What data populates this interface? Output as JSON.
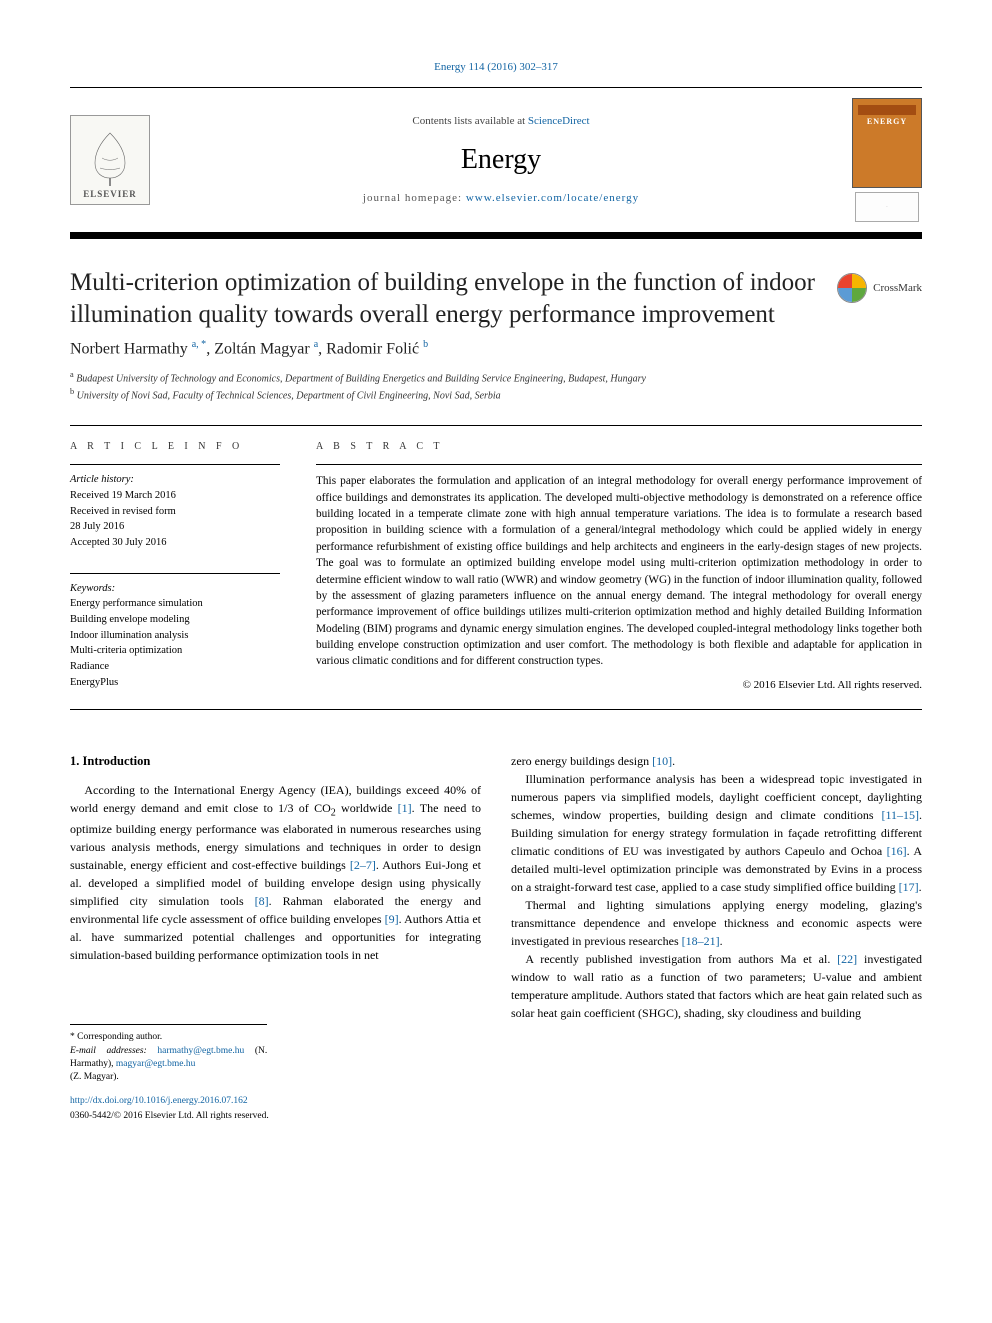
{
  "citation": "Energy 114 (2016) 302–317",
  "header": {
    "contents_prefix": "Contents lists available at ",
    "contents_link": "ScienceDirect",
    "journal": "Energy",
    "homepage_prefix": "journal homepage: ",
    "homepage_url": "www.elsevier.com/locate/energy",
    "elsevier": "ELSEVIER",
    "cover_title": "ENERGY"
  },
  "crossmark": "CrossMark",
  "title": "Multi-criterion optimization of building envelope in the function of indoor illumination quality towards overall energy performance improvement",
  "authors_html": "Norbert Harmathy <sup>a, *</sup>, Zoltán Magyar <sup>a</sup>, Radomir Folić <sup>b</sup>",
  "affiliations": {
    "a": "Budapest University of Technology and Economics, Department of Building Energetics and Building Service Engineering, Budapest, Hungary",
    "b": "University of Novi Sad, Faculty of Technical Sciences, Department of Civil Engineering, Novi Sad, Serbia"
  },
  "article_info": {
    "heading": "A R T I C L E   I N F O",
    "history_label": "Article history:",
    "received": "Received 19 March 2016",
    "revised": "Received in revised form",
    "revised_date": "28 July 2016",
    "accepted": "Accepted 30 July 2016",
    "keywords_label": "Keywords:",
    "keywords": [
      "Energy performance simulation",
      "Building envelope modeling",
      "Indoor illumination analysis",
      "Multi-criteria optimization",
      "Radiance",
      "EnergyPlus"
    ]
  },
  "abstract": {
    "heading": "A B S T R A C T",
    "text": "This paper elaborates the formulation and application of an integral methodology for overall energy performance improvement of office buildings and demonstrates its application. The developed multi-objective methodology is demonstrated on a reference office building located in a temperate climate zone with high annual temperature variations. The idea is to formulate a research based proposition in building science with a formulation of a general/integral methodology which could be applied widely in energy performance refurbishment of existing office buildings and help architects and engineers in the early-design stages of new projects. The goal was to formulate an optimized building envelope model using multi-criterion optimization methodology in order to determine efficient window to wall ratio (WWR) and window geometry (WG) in the function of indoor illumination quality, followed by the assessment of glazing parameters influence on the annual energy demand. The integral methodology for overall energy performance improvement of office buildings utilizes multi-criterion optimization method and highly detailed Building Information Modeling (BIM) programs and dynamic energy simulation engines. The developed coupled-integral methodology links together both building envelope construction optimization and user comfort. The methodology is both flexible and adaptable for application in various climatic conditions and for different construction types.",
    "copyright": "© 2016 Elsevier Ltd. All rights reserved."
  },
  "intro": {
    "heading": "1. Introduction",
    "p1_a": "According to the International Energy Agency (IEA), buildings exceed 40% of world energy demand and emit close to 1/3 of CO",
    "p1_b": " worldwide ",
    "ref1": "[1]",
    "p1_c": ". The need to optimize building energy performance was elaborated in numerous researches using various analysis methods, energy simulations and techniques in order to design sustainable, energy efficient and cost-effective buildings ",
    "ref2_7": "[2–7]",
    "p1_d": ". Authors Eui-Jong et al. developed a simplified model of building envelope design using physically simplified city simulation tools ",
    "ref8": "[8]",
    "p1_e": ". Rahman elaborated the energy and environmental life cycle assessment of office building envelopes ",
    "ref9": "[9]",
    "p1_f": ". Authors Attia et al. have summarized potential challenges and opportunities for integrating simulation-based building performance optimization tools in net",
    "p2_a": "zero energy buildings design ",
    "ref10": "[10]",
    "p2_b": ".",
    "p3_a": "Illumination performance analysis has been a widespread topic investigated in numerous papers via simplified models, daylight coefficient concept, daylighting schemes, window properties, building design and climate conditions ",
    "ref11_15": "[11–15]",
    "p3_b": ". Building simulation for energy strategy formulation in façade retrofitting different climatic conditions of EU was investigated by authors Capeulo and Ochoa ",
    "ref16": "[16]",
    "p3_c": ". A detailed multi-level optimization principle was demonstrated by Evins in a process on a straight-forward test case, applied to a case study simplified office building ",
    "ref17": "[17]",
    "p3_d": ".",
    "p4_a": "Thermal and lighting simulations applying energy modeling, glazing's transmittance dependence and envelope thickness and economic aspects were investigated in previous researches ",
    "ref18_21": "[18–21]",
    "p4_b": ".",
    "p5_a": "A recently published investigation from authors Ma et al. ",
    "ref22": "[22]",
    "p5_b": " investigated window to wall ratio as a function of two parameters; U-value and ambient temperature amplitude. Authors stated that factors which are heat gain related such as solar heat gain coefficient (SHGC), shading, sky cloudiness and building"
  },
  "footnotes": {
    "corr": "* Corresponding author.",
    "email_label": "E-mail addresses: ",
    "email1": "harmathy@egt.bme.hu",
    "name1": " (N. Harmathy), ",
    "email2": "magyar@egt.bme.hu",
    "name2": " (Z. Magyar)."
  },
  "doi": {
    "url": "http://dx.doi.org/10.1016/j.energy.2016.07.162",
    "issn": "0360-5442/© 2016 Elsevier Ltd. All rights reserved."
  },
  "colors": {
    "link": "#1264a3",
    "cover_bg": "#cc7a29",
    "cover_bar": "#a34d12"
  }
}
